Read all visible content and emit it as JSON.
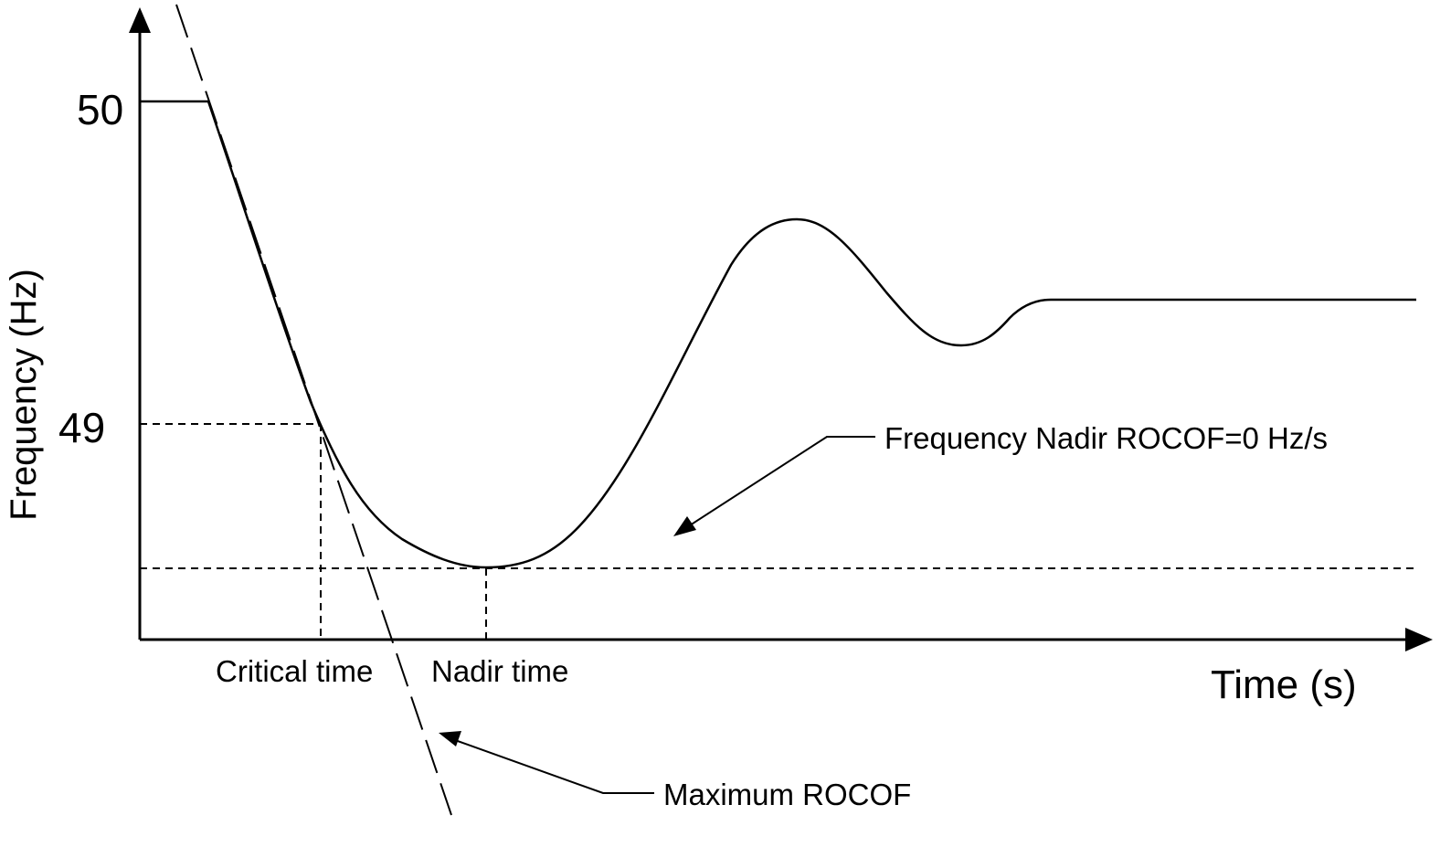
{
  "axes": {
    "y_axis_label": "Frequency (Hz)",
    "x_axis_label": "Time (s)",
    "y_ticks": [
      "50",
      "49"
    ]
  },
  "markers": {
    "critical_time": "Critical time",
    "nadir_time": "Nadir time"
  },
  "annotations": {
    "frequency_nadir": "Frequency Nadir  ROCOF=0 Hz/s",
    "max_rocof": "Maximum ROCOF"
  }
}
